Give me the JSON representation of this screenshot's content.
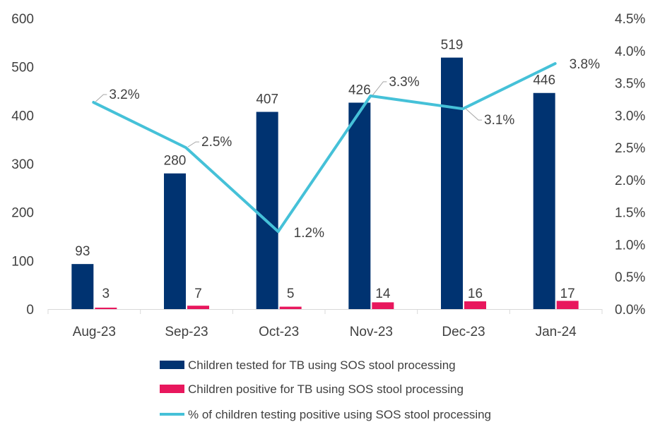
{
  "chart_data": {
    "type": "bar",
    "categories": [
      "Aug-23",
      "Sep-23",
      "Oct-23",
      "Nov-23",
      "Dec-23",
      "Jan-24"
    ],
    "series": [
      {
        "name": "Children tested for TB using SOS stool processing",
        "chart": "bar",
        "axis": "left",
        "color": "#003371",
        "values": [
          93,
          280,
          407,
          426,
          519,
          446
        ],
        "labels": [
          "93",
          "280",
          "407",
          "426",
          "519",
          "446"
        ]
      },
      {
        "name": "Children positive for TB using SOS stool processing",
        "chart": "bar",
        "axis": "left",
        "color": "#E8175D",
        "values": [
          3,
          7,
          5,
          14,
          16,
          17
        ],
        "labels": [
          "3",
          "7",
          "5",
          "14",
          "16",
          "17"
        ]
      },
      {
        "name": "% of children testing positive using SOS stool processing",
        "chart": "line",
        "axis": "right",
        "color": "#45C1D8",
        "values": [
          3.2,
          2.5,
          1.2,
          3.3,
          3.1,
          3.8
        ],
        "labels": [
          "3.2%",
          "2.5%",
          "1.2%",
          "3.3%",
          "3.1%",
          "3.8%"
        ]
      }
    ],
    "y_left": {
      "range": [
        0,
        600
      ],
      "ticks": [
        0,
        100,
        200,
        300,
        400,
        500,
        600
      ],
      "tick_labels": [
        "0",
        "100",
        "200",
        "300",
        "400",
        "500",
        "600"
      ]
    },
    "y_right": {
      "range": [
        0,
        4.5
      ],
      "ticks": [
        0,
        0.5,
        1,
        1.5,
        2,
        2.5,
        3,
        3.5,
        4,
        4.5
      ],
      "tick_labels": [
        "0.0%",
        "0.5%",
        "1.0%",
        "1.5%",
        "2.0%",
        "2.5%",
        "3.0%",
        "3.5%",
        "4.0%",
        "4.5%"
      ]
    },
    "gridlines": false,
    "legend_position": "bottom"
  }
}
